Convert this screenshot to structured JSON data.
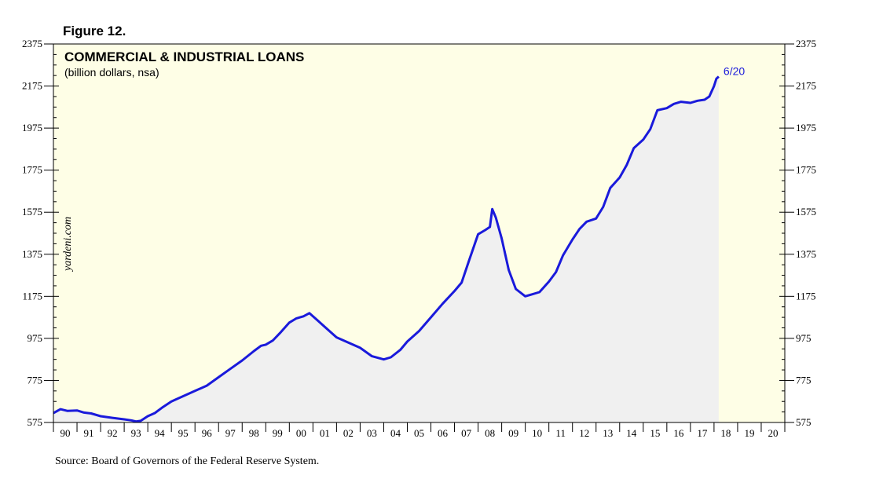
{
  "figure_label": "Figure 12.",
  "source": "Source: Board of Governors of the Federal Reserve System.",
  "watermark": "yardeni.com",
  "chart_data": {
    "type": "line",
    "title": "COMMERCIAL & INDUSTRIAL LOANS",
    "subtitle": "(billion dollars, nsa)",
    "end_label": "6/20",
    "ylim": [
      575,
      2375
    ],
    "yticks": [
      575,
      775,
      975,
      1175,
      1375,
      1575,
      1775,
      1975,
      2175,
      2375
    ],
    "xlim": [
      1990,
      2021
    ],
    "xticklabels": [
      "90",
      "91",
      "92",
      "93",
      "94",
      "95",
      "96",
      "97",
      "98",
      "99",
      "00",
      "01",
      "02",
      "03",
      "04",
      "05",
      "06",
      "07",
      "08",
      "09",
      "10",
      "11",
      "12",
      "13",
      "14",
      "15",
      "16",
      "17",
      "18",
      "19",
      "20"
    ],
    "grid": false,
    "colors": {
      "line": "#1a1adb",
      "area": "#f0f0f0",
      "background": "#fefee6",
      "end_label": "#1a1adb"
    },
    "series": [
      {
        "x": [
          1990.0,
          1990.3,
          1990.6,
          1991.0,
          1991.3,
          1991.6,
          1992.0,
          1992.5,
          1993.0,
          1993.3,
          1993.5,
          1993.7,
          1994.0,
          1994.3,
          1994.6,
          1995.0,
          1995.5,
          1996.0,
          1996.5,
          1997.0,
          1997.5,
          1998.0,
          1998.5,
          1998.8,
          1999.0,
          1999.3,
          1999.6,
          2000.0,
          2000.3,
          2000.6,
          2000.85,
          2001.2,
          2001.5,
          2002.0,
          2002.5,
          2003.0,
          2003.5,
          2004.0,
          2004.3,
          2004.7,
          2005.0,
          2005.5,
          2006.0,
          2006.5,
          2007.0,
          2007.3,
          2007.6,
          2008.0,
          2008.3,
          2008.5,
          2008.6,
          2008.75,
          2009.0,
          2009.3,
          2009.6,
          2010.0,
          2010.3,
          2010.6,
          2011.0,
          2011.3,
          2011.6,
          2012.0,
          2012.3,
          2012.6,
          2013.0,
          2013.3,
          2013.6,
          2014.0,
          2014.3,
          2014.6,
          2015.0,
          2015.3,
          2015.6,
          2016.0,
          2016.3,
          2016.6,
          2017.0,
          2017.3,
          2017.6,
          2017.8,
          2018.0,
          2018.1,
          2018.2
        ],
        "y": [
          620,
          638,
          630,
          632,
          622,
          618,
          605,
          597,
          590,
          585,
          580,
          583,
          605,
          620,
          645,
          675,
          700,
          725,
          750,
          790,
          830,
          870,
          915,
          940,
          945,
          965,
          1000,
          1050,
          1070,
          1080,
          1095,
          1060,
          1030,
          980,
          955,
          930,
          890,
          875,
          885,
          920,
          960,
          1010,
          1075,
          1140,
          1200,
          1240,
          1340,
          1470,
          1490,
          1505,
          1590,
          1550,
          1450,
          1300,
          1210,
          1175,
          1185,
          1195,
          1245,
          1290,
          1370,
          1445,
          1495,
          1530,
          1545,
          1600,
          1690,
          1740,
          1800,
          1880,
          1920,
          1970,
          2060,
          2070,
          2090,
          2100,
          2095,
          2105,
          2110,
          2125,
          2175,
          2210,
          2220
        ]
      }
    ]
  }
}
